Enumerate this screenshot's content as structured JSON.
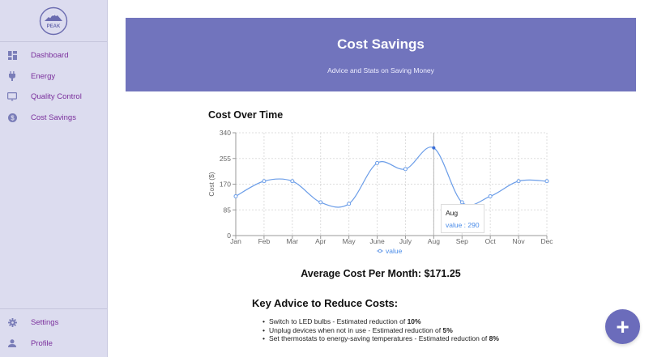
{
  "sidebar": {
    "logo_text": "PEAK",
    "items": [
      {
        "label": "Dashboard",
        "icon": "dashboard-icon"
      },
      {
        "label": "Energy",
        "icon": "plug-icon"
      },
      {
        "label": "Quality Control",
        "icon": "monitor-icon"
      },
      {
        "label": "Cost Savings",
        "icon": "dollar-icon"
      }
    ],
    "bottom_items": [
      {
        "label": "Settings",
        "icon": "gear-icon"
      },
      {
        "label": "Profile",
        "icon": "user-icon"
      }
    ]
  },
  "banner": {
    "title": "Cost Savings",
    "subtitle": "Advice and Stats on Saving Money"
  },
  "chart_section": {
    "title": "Cost Over Time"
  },
  "chart_data": {
    "type": "line",
    "title": "Cost Over Time",
    "xlabel": "",
    "ylabel": "Cost ($)",
    "categories": [
      "Jan",
      "Feb",
      "Mar",
      "Apr",
      "May",
      "June",
      "July",
      "Aug",
      "Sep",
      "Oct",
      "Nov",
      "Dec"
    ],
    "series": [
      {
        "name": "value",
        "values": [
          130,
          180,
          180,
          110,
          105,
          240,
          220,
          290,
          110,
          130,
          180,
          180
        ]
      }
    ],
    "ylim": [
      0,
      340
    ],
    "yticks": [
      0,
      85,
      170,
      255,
      340
    ],
    "grid": true,
    "legend_position": "bottom",
    "color": "#6b9de8",
    "tooltip": {
      "category": "Aug",
      "label": "value : 290"
    }
  },
  "tooltip": {
    "title": "Aug",
    "value_text": "value : 290"
  },
  "legend": {
    "label": "value"
  },
  "average": {
    "text": "Average Cost Per Month: $171.25"
  },
  "advice": {
    "title": "Key Advice to Reduce Costs:",
    "items": [
      {
        "text": "Switch to LED bulbs - Estimated reduction of ",
        "value": "10%"
      },
      {
        "text": "Unplug devices when not in use - Estimated reduction of ",
        "value": "5%"
      },
      {
        "text": "Set thermostats to energy-saving temperatures - Estimated reduction of ",
        "value": "8%"
      }
    ]
  },
  "fab": {
    "label": "+"
  },
  "colors": {
    "accent": "#7174bd",
    "sidebar_bg": "#dcdcef",
    "nav_text": "#7a2f9c",
    "line": "#6b9de8"
  }
}
